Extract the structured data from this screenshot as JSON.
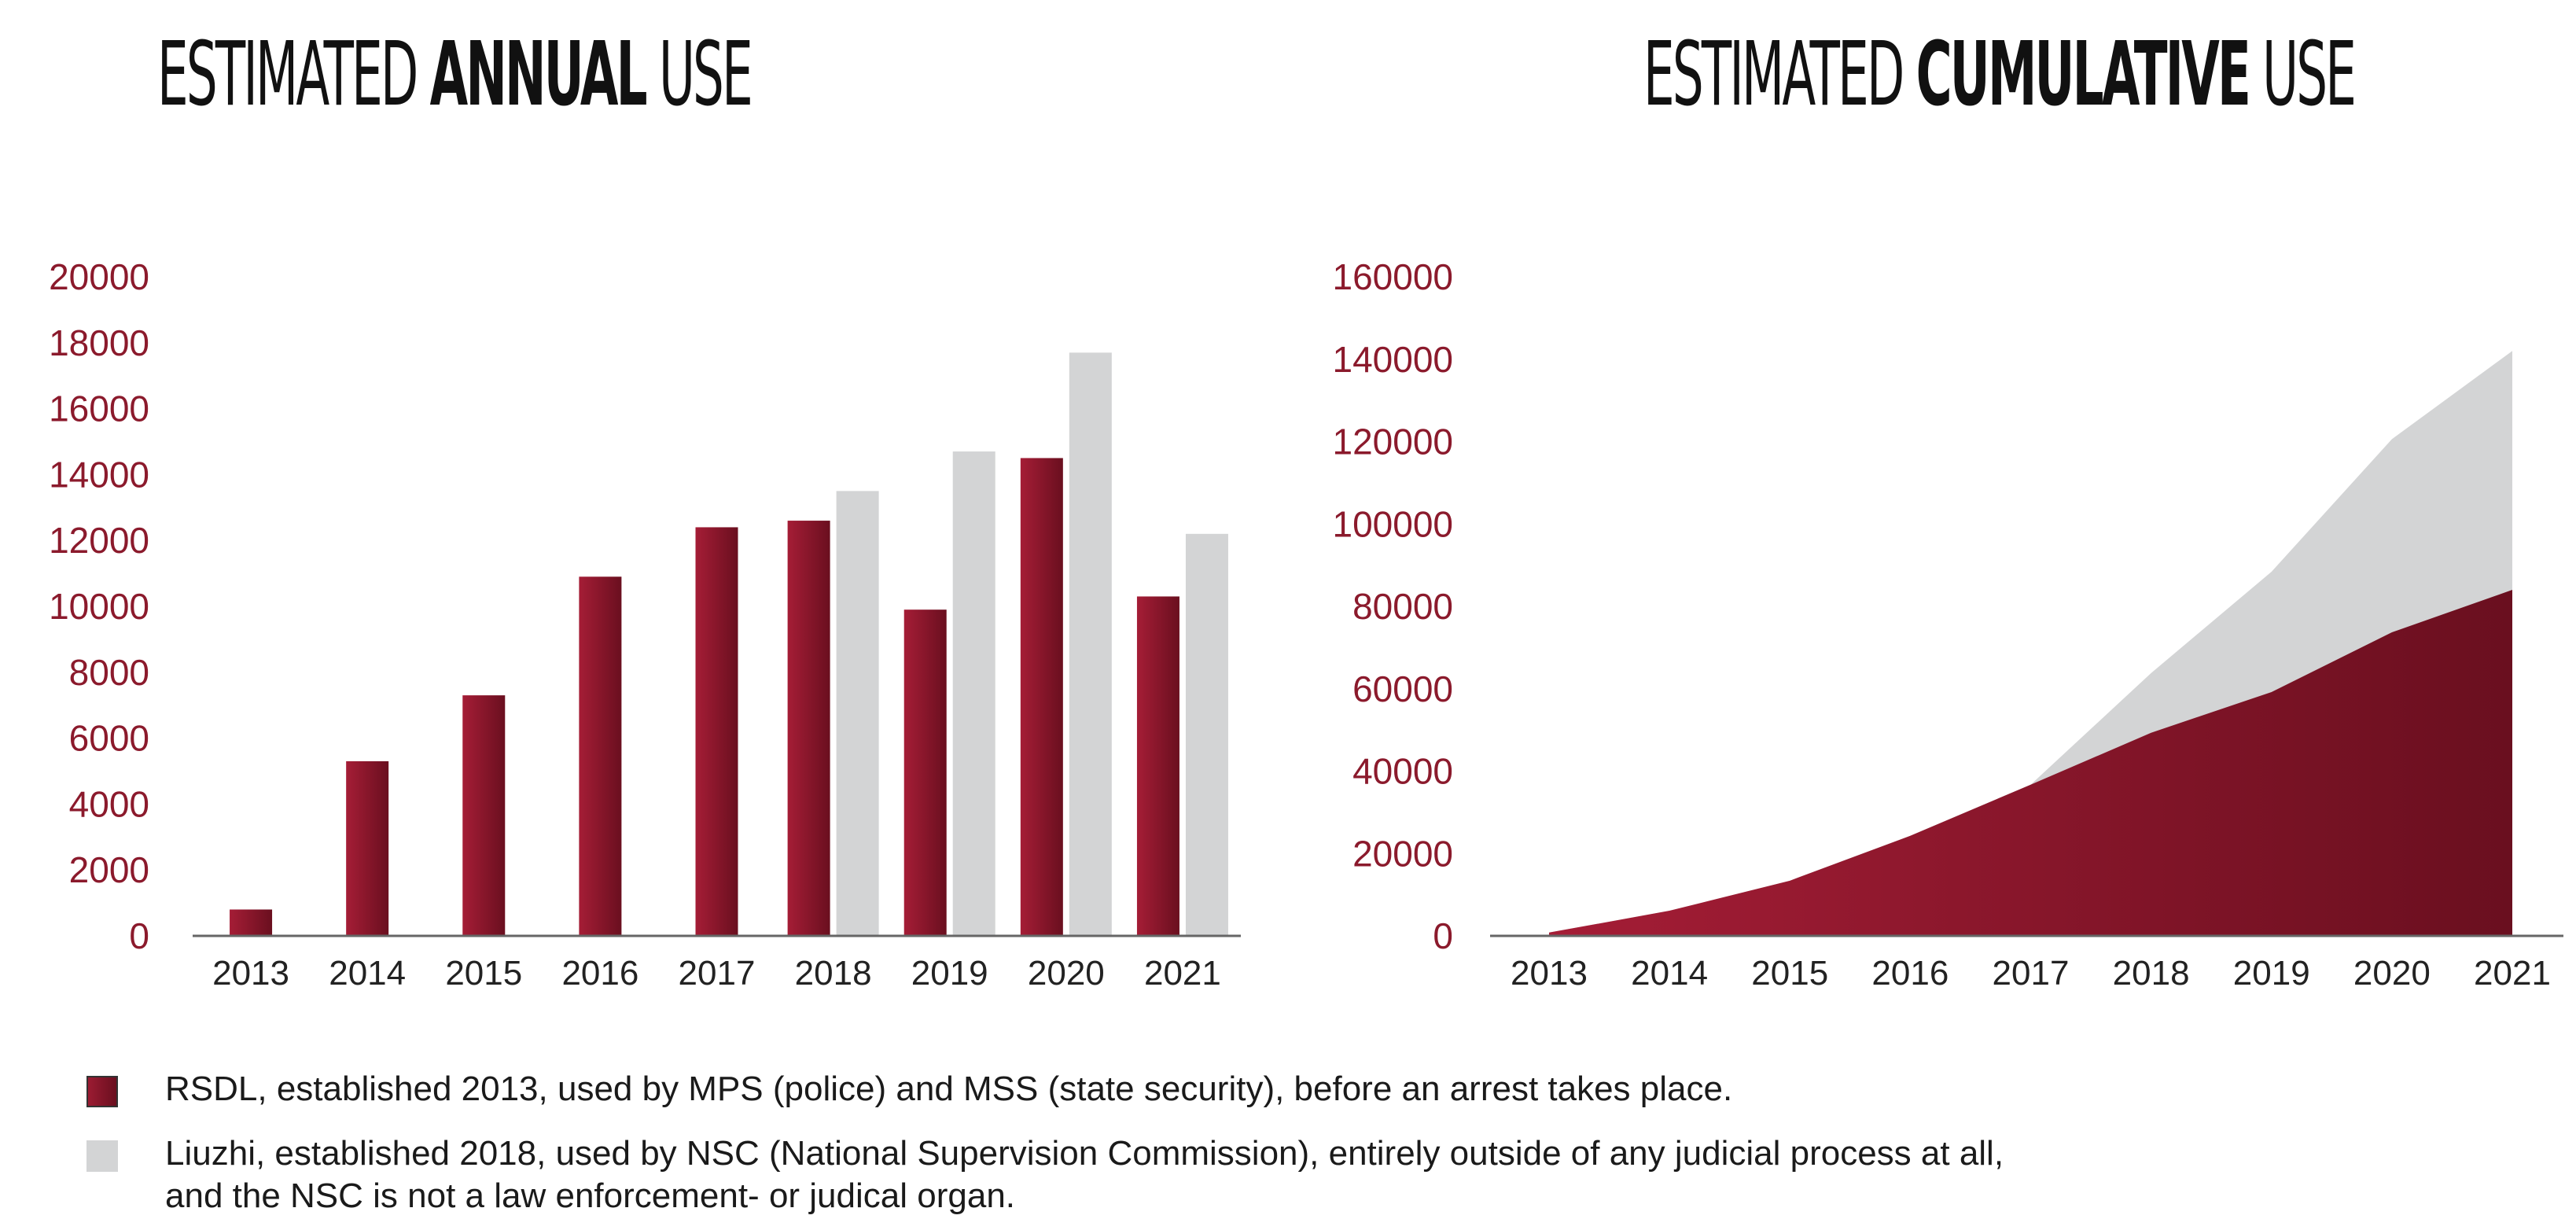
{
  "colors": {
    "rsdl": "#8b1a2c",
    "rsdl_dark": "#6a0f1f",
    "liuzhi": "#d3d4d5",
    "tick_label": "#8b1a2c",
    "year_label": "#222222",
    "axis": "#666666"
  },
  "titles": {
    "annual": {
      "pre": "ESTIMATED ",
      "bold": "ANNUAL",
      "post": " USE"
    },
    "cumulative": {
      "pre": "ESTIMATED ",
      "bold": "CUMULATIVE",
      "post": " USE"
    }
  },
  "legend": {
    "rsdl": "RSDL, established 2013, used by MPS (police) and MSS (state security), before an arrest takes place.",
    "liuzhi_line1": "Liuzhi, established 2018, used by NSC (National Supervision Commission), entirely outside of any judicial process at all,",
    "liuzhi_line2": "and the NSC is not a law enforcement- or judical organ."
  },
  "chart_data": [
    {
      "type": "bar",
      "title": "ESTIMATED ANNUAL USE",
      "categories": [
        "2013",
        "2014",
        "2015",
        "2016",
        "2017",
        "2018",
        "2019",
        "2020",
        "2021"
      ],
      "ylim": [
        0,
        20000
      ],
      "yticks": [
        0,
        2000,
        4000,
        6000,
        8000,
        10000,
        12000,
        14000,
        16000,
        18000,
        20000
      ],
      "grid": false,
      "series": [
        {
          "name": "RSDL",
          "values": [
            800,
            5300,
            7300,
            10900,
            12400,
            12600,
            9900,
            14500,
            10300
          ]
        },
        {
          "name": "Liuzhi",
          "values": [
            null,
            null,
            null,
            null,
            null,
            13500,
            14700,
            17700,
            12200
          ]
        }
      ]
    },
    {
      "type": "area",
      "title": "ESTIMATED CUMULATIVE USE",
      "categories": [
        "2013",
        "2014",
        "2015",
        "2016",
        "2017",
        "2018",
        "2019",
        "2020",
        "2021"
      ],
      "ylim": [
        0,
        160000
      ],
      "yticks": [
        0,
        20000,
        40000,
        60000,
        80000,
        100000,
        120000,
        140000,
        160000
      ],
      "grid": false,
      "stacked": false,
      "series": [
        {
          "name": "Liuzhi",
          "values": [
            800,
            6100,
            13400,
            24300,
            36700,
            63800,
            88400,
            120600,
            142000
          ]
        },
        {
          "name": "RSDL",
          "values": [
            800,
            6100,
            13400,
            24300,
            36700,
            49300,
            59200,
            73700,
            84000
          ]
        }
      ]
    }
  ]
}
